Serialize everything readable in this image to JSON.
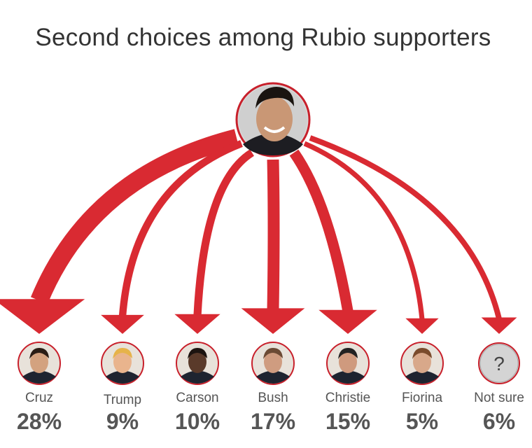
{
  "title": "Second choices among Rubio supporters",
  "source_candidate": "Rubio",
  "colors": {
    "arrow": "#d92a32",
    "ring": "#c8202b",
    "text": "#555555",
    "title": "#333333"
  },
  "chart_data": {
    "type": "bar",
    "title": "Second choices among Rubio supporters",
    "categories": [
      "Cruz",
      "Trump",
      "Carson",
      "Bush",
      "Christie",
      "Fiorina",
      "Not sure"
    ],
    "values": [
      28,
      9,
      10,
      17,
      15,
      5,
      6
    ],
    "labels": [
      "28%",
      "9%",
      "10%",
      "17%",
      "15%",
      "5%",
      "6%"
    ],
    "unit": "%"
  }
}
